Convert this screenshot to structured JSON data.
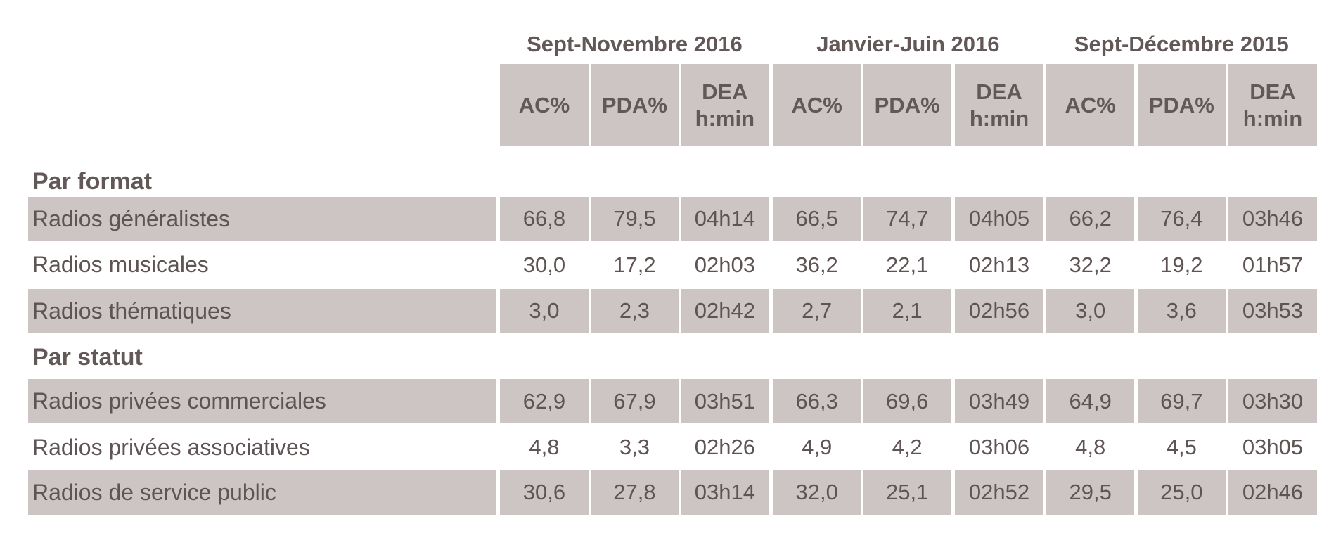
{
  "table": {
    "groups": [
      "Sept-Novembre 2016",
      "Janvier-Juin 2016",
      "Sept-Décembre 2015"
    ],
    "subheaders": [
      "AC%",
      "PDA%",
      "DEA\nh:min"
    ],
    "sections": [
      {
        "title": "Par format",
        "rows": [
          {
            "label": "Radios généralistes",
            "values": [
              "66,8",
              "79,5",
              "04h14",
              "66,5",
              "74,7",
              "04h05",
              "66,2",
              "76,4",
              "03h46"
            ]
          },
          {
            "label": "Radios musicales",
            "values": [
              "30,0",
              "17,2",
              "02h03",
              "36,2",
              "22,1",
              "02h13",
              "32,2",
              "19,2",
              "01h57"
            ]
          },
          {
            "label": "Radios thématiques",
            "values": [
              "3,0",
              "2,3",
              "02h42",
              "2,7",
              "2,1",
              "02h56",
              "3,0",
              "3,6",
              "03h53"
            ]
          }
        ]
      },
      {
        "title": "Par statut",
        "rows": [
          {
            "label": "Radios privées commerciales",
            "values": [
              "62,9",
              "67,9",
              "03h51",
              "66,3",
              "69,6",
              "03h49",
              "64,9",
              "69,7",
              "03h30"
            ]
          },
          {
            "label": "Radios privées associatives",
            "values": [
              "4,8",
              "3,3",
              "02h26",
              "4,9",
              "4,2",
              "03h06",
              "4,8",
              "4,5",
              "03h05"
            ]
          },
          {
            "label": "Radios de service public",
            "values": [
              "30,6",
              "27,8",
              "03h14",
              "32,0",
              "25,1",
              "02h52",
              "29,5",
              "25,0",
              "02h46"
            ]
          }
        ]
      }
    ]
  }
}
